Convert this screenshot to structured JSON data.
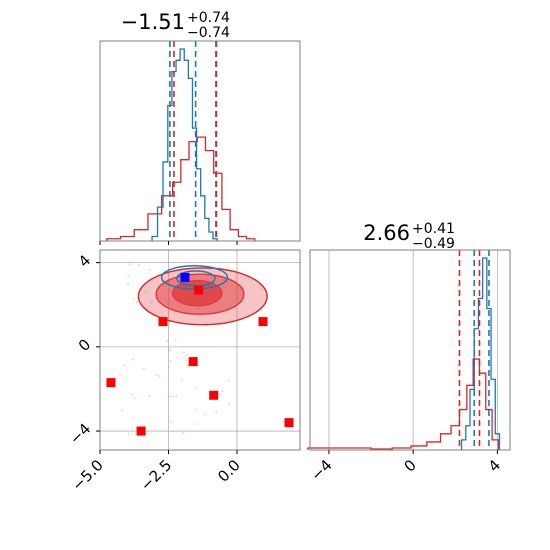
{
  "chart_data": {
    "type": "corner",
    "colors": {
      "blue": "#1f77b4",
      "red": "#d62728",
      "fill_red": "#e8575a",
      "marker_red": "#ff0000",
      "marker_blue": "#0000ff",
      "grid": "#b0b0b0"
    },
    "param1": {
      "title_main": "−1.51",
      "title_plus": "+0.74",
      "title_minus": "−0.74",
      "range": [
        -5.0,
        2.3
      ],
      "ticks": [
        -5.0,
        -2.5,
        0.0
      ],
      "tick_labels": [
        "−5.0",
        "−2.5",
        "0.0"
      ],
      "blue_quantiles": [
        -2.45,
        -1.51,
        -0.77
      ],
      "red_quantiles": [
        -2.3,
        -0.75
      ]
    },
    "param2": {
      "title_main": "2.66",
      "title_plus": "+0.41",
      "title_minus": "−0.49",
      "range": [
        -4.9,
        4.6
      ],
      "ticks": [
        -4,
        0,
        4
      ],
      "tick_labels": [
        "−4",
        "0",
        "4"
      ],
      "blue_quantiles": [
        2.9,
        3.6
      ],
      "red_quantiles": [
        2.2,
        3.15
      ]
    },
    "hist1_blue": {
      "centers": [
        -3.0,
        -2.8,
        -2.6,
        -2.45,
        -2.3,
        -2.15,
        -2.0,
        -1.85,
        -1.7,
        -1.55,
        -1.4,
        -1.25,
        -1.1,
        -0.95,
        -0.8
      ],
      "counts": [
        0.02,
        0.15,
        0.35,
        0.6,
        0.75,
        0.8,
        0.85,
        0.8,
        0.72,
        0.5,
        0.32,
        0.2,
        0.1,
        0.04,
        0.01
      ]
    },
    "hist1_red": {
      "centers": [
        -4.5,
        -4.0,
        -3.5,
        -3.0,
        -2.5,
        -2.2,
        -1.9,
        -1.6,
        -1.3,
        -1.0,
        -0.7,
        -0.4,
        -0.1,
        0.2,
        0.5
      ],
      "counts": [
        0.01,
        0.02,
        0.05,
        0.12,
        0.2,
        0.26,
        0.36,
        0.44,
        0.46,
        0.4,
        0.3,
        0.14,
        0.05,
        0.02,
        0.01
      ]
    },
    "hist2_blue": {
      "centers": [
        2.4,
        2.6,
        2.8,
        3.0,
        3.2,
        3.4,
        3.6,
        3.8,
        4.0
      ],
      "counts": [
        0.05,
        0.12,
        0.3,
        0.6,
        0.75,
        0.95,
        0.7,
        0.35,
        0.08
      ]
    },
    "hist2_red": {
      "centers": [
        -4.5,
        -3.5,
        -2.5,
        -1.5,
        -0.5,
        0.3,
        1.0,
        1.6,
        2.0,
        2.4,
        2.7,
        3.0,
        3.3,
        3.6,
        3.9
      ],
      "counts": [
        0.01,
        0.01,
        0.01,
        0.005,
        0.01,
        0.02,
        0.04,
        0.08,
        0.12,
        0.2,
        0.32,
        0.45,
        0.38,
        0.2,
        0.05
      ]
    },
    "red_markers": [
      [
        -3.5,
        -4.0
      ],
      [
        -4.6,
        -1.7
      ],
      [
        -2.7,
        1.2
      ],
      [
        -1.6,
        -0.7
      ],
      [
        -0.85,
        -2.3
      ],
      [
        0.95,
        1.2
      ],
      [
        1.9,
        -3.6
      ],
      [
        -1.4,
        2.7
      ]
    ],
    "blue_marker": [
      -1.9,
      3.3
    ],
    "red_contours": [
      {
        "cx": -1.45,
        "cy": 2.55,
        "rx": 0.9,
        "ry": 0.6,
        "level": "inner"
      },
      {
        "cx": -1.35,
        "cy": 2.5,
        "rx": 1.6,
        "ry": 0.95,
        "level": "mid"
      },
      {
        "cx": -1.25,
        "cy": 2.4,
        "rx": 2.35,
        "ry": 1.35,
        "level": "outer"
      }
    ],
    "blue_contours": [
      {
        "cx": -1.55,
        "cy": 3.3,
        "rx": 1.2,
        "ry": 0.55
      },
      {
        "cx": -1.5,
        "cy": 3.25,
        "rx": 0.7,
        "ry": 0.35
      }
    ]
  }
}
